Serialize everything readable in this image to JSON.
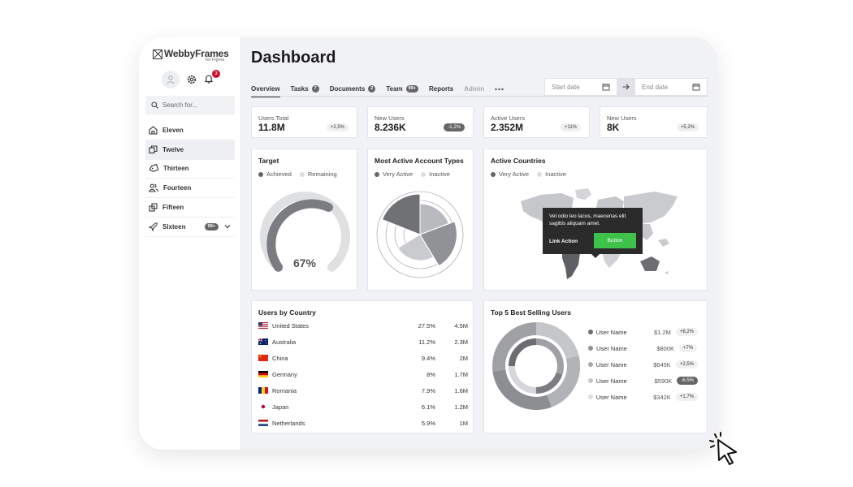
{
  "brand": {
    "name": "WebbyFrames",
    "sub": "for Figma"
  },
  "notifications": {
    "count": "3"
  },
  "search": {
    "placeholder": "Search for..."
  },
  "sidebar": {
    "items": [
      {
        "label": "Eleven",
        "icon": "home-icon"
      },
      {
        "label": "Twelve",
        "icon": "copy-icon"
      },
      {
        "label": "Thirteen",
        "icon": "tag-icon"
      },
      {
        "label": "Fourteen",
        "icon": "users-icon"
      },
      {
        "label": "Fifteen",
        "icon": "layers-icon"
      },
      {
        "label": "Sixteen",
        "icon": "plane-icon",
        "badge": "99+"
      }
    ]
  },
  "page": {
    "title": "Dashboard"
  },
  "tabs": [
    {
      "label": "Overview"
    },
    {
      "label": "Tasks",
      "badge": "7"
    },
    {
      "label": "Documents",
      "badge": "2"
    },
    {
      "label": "Team",
      "badge": "99+"
    },
    {
      "label": "Reports"
    },
    {
      "label": "Admin"
    }
  ],
  "dates": {
    "start": "Start date",
    "end": "End date"
  },
  "stats": [
    {
      "label": "Users Total",
      "value": "11.8M",
      "change": "+2,5%"
    },
    {
      "label": "New Users",
      "value": "8.236K",
      "change": "-1,2%"
    },
    {
      "label": "Active Users",
      "value": "2.352M",
      "change": "+11%"
    },
    {
      "label": "New Users",
      "value": "8K",
      "change": "+5,2%"
    }
  ],
  "target": {
    "title": "Target",
    "legend": [
      "Achieved",
      "Remaining"
    ],
    "percent_label": "67%"
  },
  "account_types": {
    "title": "Most Active Account Types",
    "legend": [
      "Very Active",
      "Inactive"
    ]
  },
  "countries_map": {
    "title": "Active Countries",
    "legend": [
      "Very Active",
      "Inactive"
    ],
    "tooltip": {
      "text": "Vel odio leo lacus, maecenas elit sagittis aliquam amet.",
      "link": "Link Action",
      "button": "Button"
    }
  },
  "users_by_country": {
    "title": "Users by Country",
    "rows": [
      {
        "country": "United States",
        "pct": "27.5%",
        "users": "4.5M"
      },
      {
        "country": "Australia",
        "pct": "11.2%",
        "users": "2.3M"
      },
      {
        "country": "China",
        "pct": "9.4%",
        "users": "2M"
      },
      {
        "country": "Germany",
        "pct": "8%",
        "users": "1.7M"
      },
      {
        "country": "Romania",
        "pct": "7.9%",
        "users": "1.6M"
      },
      {
        "country": "Japan",
        "pct": "6.1%",
        "users": "1.2M"
      },
      {
        "country": "Netherlands",
        "pct": "5.9%",
        "users": "1M"
      }
    ]
  },
  "top_sellers": {
    "title": "Top 5 Best Selling Users",
    "rows": [
      {
        "name": "User Name",
        "value": "$1.2M",
        "change": "+8,2%",
        "color": "#6b6d70"
      },
      {
        "name": "User Name",
        "value": "$800K",
        "change": "+7%",
        "color": "#8e9093"
      },
      {
        "name": "User Name",
        "value": "$645K",
        "change": "+2,5%",
        "color": "#a9abae"
      },
      {
        "name": "User Name",
        "value": "$590K",
        "change": "-6,5%",
        "color": "#c4c6c9"
      },
      {
        "name": "User Name",
        "value": "$342K",
        "change": "+1,7%",
        "color": "#dcdee0"
      }
    ]
  },
  "colors": {
    "accent": "#3ec24a",
    "dark": "#666666",
    "card_bg": "#ffffff",
    "page_bg": "#f1f2f5",
    "badge_red": "#c8102e"
  }
}
